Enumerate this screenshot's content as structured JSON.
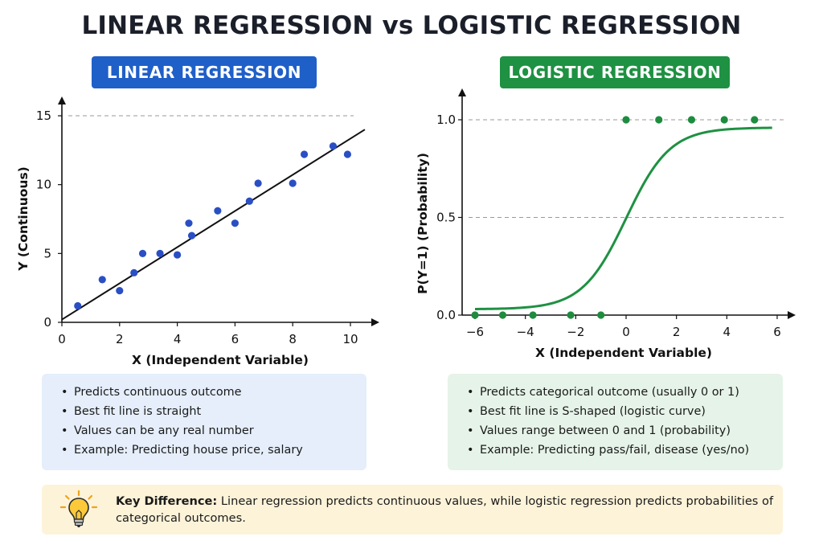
{
  "title": "LINEAR REGRESSION vs LOGISTIC REGRESSION",
  "colors": {
    "linear_accent": "#1f5fc8",
    "logistic_accent": "#1e9142",
    "point_blue": "#2a4fc4",
    "point_green": "#1e8c3f",
    "key_bg": "#fdf3d9"
  },
  "chart_data": [
    {
      "type": "scatter",
      "title": "LINEAR REGRESSION",
      "xlabel": "X (Independent Variable)",
      "ylabel": "Y (Continuous)",
      "xlim": [
        0,
        10.5
      ],
      "ylim": [
        0,
        15.5
      ],
      "xticks": [
        0,
        2,
        4,
        6,
        8,
        10
      ],
      "yticks": [
        0,
        5,
        10,
        15
      ],
      "reference_lines": [
        15
      ],
      "series": [
        {
          "points": [
            [
              0.55,
              1.2
            ],
            [
              1.4,
              3.1
            ],
            [
              2.0,
              2.3
            ],
            [
              2.5,
              3.6
            ],
            [
              2.8,
              5.0
            ],
            [
              3.4,
              5.0
            ],
            [
              4.0,
              4.9
            ],
            [
              4.4,
              7.2
            ],
            [
              4.5,
              6.3
            ],
            [
              5.4,
              8.1
            ],
            [
              6.0,
              7.2
            ],
            [
              6.5,
              8.8
            ],
            [
              6.8,
              10.1
            ],
            [
              8.0,
              10.1
            ],
            [
              8.4,
              12.2
            ],
            [
              9.4,
              12.8
            ],
            [
              9.9,
              12.2
            ]
          ]
        }
      ],
      "fit_line": {
        "type": "line",
        "x": [
          0,
          10.5
        ],
        "y": [
          0.2,
          14.0
        ]
      }
    },
    {
      "type": "scatter",
      "title": "LOGISTIC REGRESSION",
      "xlabel": "X (Independent Variable)",
      "ylabel": "P(Y=1) (Probability)",
      "xlim": [
        -6.4,
        6.4
      ],
      "ylim": [
        0,
        1.1
      ],
      "xticks": [
        -6,
        -4,
        -2,
        0,
        2,
        4,
        6
      ],
      "xtick_labels": [
        "−6",
        "−4",
        "−2",
        "0",
        "2",
        "4",
        "6"
      ],
      "yticks": [
        0,
        0.5,
        1
      ],
      "ytick_labels": [
        "0.0",
        "0.5",
        "1.0"
      ],
      "reference_lines": [
        0,
        0.5,
        1.0
      ],
      "series": [
        {
          "points": [
            [
              -6.0,
              0
            ],
            [
              -4.9,
              0
            ],
            [
              -3.7,
              0
            ],
            [
              -2.2,
              0
            ],
            [
              -1.0,
              0
            ],
            [
              0,
              1
            ],
            [
              1.3,
              1
            ],
            [
              2.6,
              1
            ],
            [
              3.9,
              1
            ],
            [
              5.1,
              1
            ]
          ]
        }
      ],
      "fit_curve": {
        "type": "logistic",
        "x_range": [
          -6.0,
          5.8
        ],
        "lower": 0.03,
        "upper": 0.96,
        "k": 1.15,
        "x0": 0
      }
    }
  ],
  "linear_box": {
    "items": [
      "Predicts continuous outcome",
      "Best fit line is straight",
      "Values can be any real number",
      "Example: Predicting house price, salary"
    ]
  },
  "logistic_box": {
    "items": [
      "Predicts categorical outcome (usually 0 or 1)",
      "Best fit line is S-shaped (logistic curve)",
      "Values range between 0 and 1 (probability)",
      "Example: Predicting pass/fail, disease (yes/no)"
    ]
  },
  "key": {
    "label": "Key Difference:",
    "text": " Linear regression predicts continuous values, while logistic regression predicts probabilities of categorical outcomes.",
    "icon": "lightbulb-icon"
  }
}
